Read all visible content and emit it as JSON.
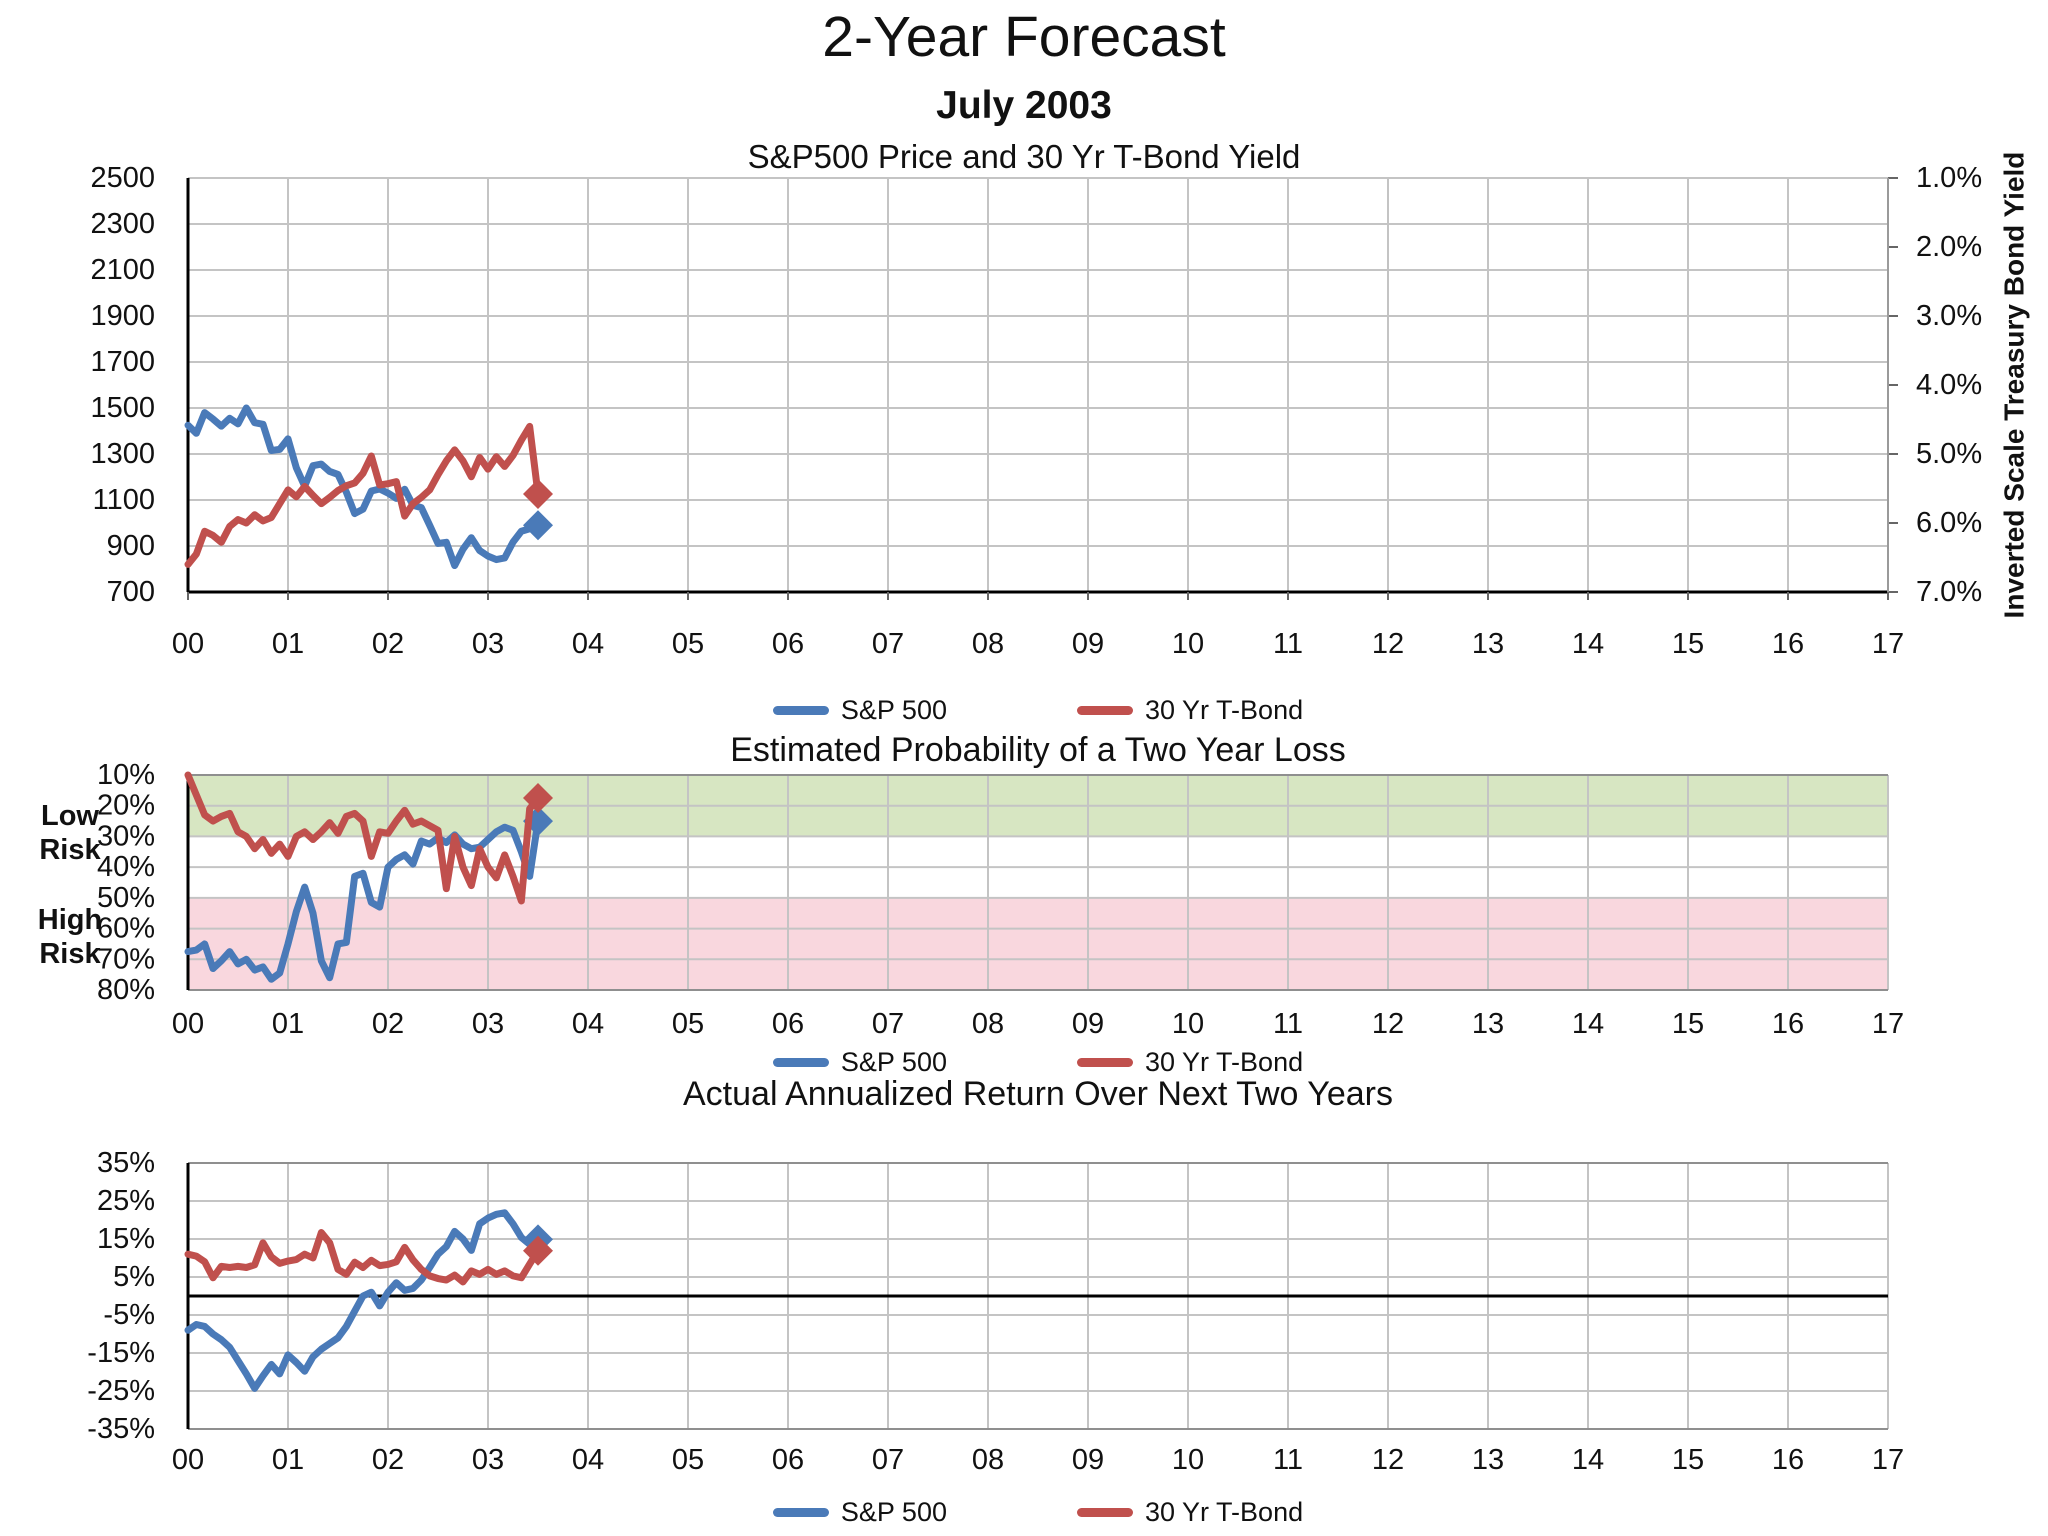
{
  "page": {
    "title": "2-Year Forecast",
    "subtitle": "July 2003"
  },
  "legend": {
    "sp500": "S&P 500",
    "tbond": "30 Yr T-Bond"
  },
  "risk_labels": {
    "low_line1": "Low",
    "low_line2": "Risk",
    "high_line1": "High",
    "high_line2": "Risk"
  },
  "right_axis_title": "Inverted Scale Treasury Bond Yield",
  "colors": {
    "sp500": "#4a7ab8",
    "tbond": "#c0504d",
    "grid": "#c4c4c4",
    "border": "#9a9a9a",
    "axis": "#000000",
    "green_band": "#d7e6c2",
    "pink_band": "#f9d7de",
    "text": "#111111"
  },
  "chart_data": [
    {
      "type": "line",
      "title": "S&P500 Price and 30 Yr T-Bond Yield",
      "x": {
        "min": 0,
        "max": 17,
        "tick_labels": [
          "00",
          "01",
          "02",
          "03",
          "04",
          "05",
          "06",
          "07",
          "08",
          "09",
          "10",
          "11",
          "12",
          "13",
          "14",
          "15",
          "16",
          "17"
        ],
        "grid": true
      },
      "y_left": {
        "min": 700,
        "max": 2500,
        "step": 200,
        "tick_labels": [
          "2500",
          "2300",
          "2100",
          "1900",
          "1700",
          "1500",
          "1300",
          "1100",
          "900",
          "700"
        ]
      },
      "y_right": {
        "min": 1.0,
        "max": 7.0,
        "step": 1.0,
        "inverted_scale": true,
        "tick_labels": [
          "1.0%",
          "2.0%",
          "3.0%",
          "4.0%",
          "5.0%",
          "6.0%",
          "7.0%"
        ]
      },
      "series": [
        {
          "name": "S&P 500",
          "axis": "left",
          "color_key": "sp500",
          "x_start_year": 0,
          "x_step_months": 1,
          "end_marker": "diamond",
          "values": [
            1425,
            1390,
            1480,
            1452,
            1421,
            1455,
            1431,
            1500,
            1436,
            1429,
            1315,
            1320,
            1366,
            1240,
            1160,
            1249,
            1256,
            1224,
            1211,
            1134,
            1041,
            1060,
            1139,
            1148,
            1130,
            1107,
            1147,
            1077,
            1067,
            990,
            911,
            916,
            815,
            886,
            936,
            880,
            856,
            841,
            848,
            917,
            964,
            975,
            990
          ]
        },
        {
          "name": "30 Yr T-Bond",
          "axis": "right",
          "color_key": "tbond",
          "x_start_year": 0,
          "x_step_months": 1,
          "end_marker": "diamond",
          "values": [
            6.6,
            6.45,
            6.12,
            6.18,
            6.28,
            6.05,
            5.95,
            6.0,
            5.88,
            5.97,
            5.92,
            5.72,
            5.52,
            5.62,
            5.47,
            5.6,
            5.72,
            5.63,
            5.53,
            5.46,
            5.42,
            5.28,
            5.03,
            5.45,
            5.43,
            5.4,
            5.9,
            5.72,
            5.63,
            5.52,
            5.3,
            5.1,
            4.94,
            5.1,
            5.33,
            5.05,
            5.22,
            5.04,
            5.18,
            5.02,
            4.8,
            4.6,
            5.58
          ]
        }
      ]
    },
    {
      "type": "line",
      "title": "Estimated Probability of a Two Year Loss",
      "x": {
        "min": 0,
        "max": 17,
        "tick_labels": [
          "00",
          "01",
          "02",
          "03",
          "04",
          "05",
          "06",
          "07",
          "08",
          "09",
          "10",
          "11",
          "12",
          "13",
          "14",
          "15",
          "16",
          "17"
        ],
        "grid": true
      },
      "y": {
        "min": 10,
        "max": 80,
        "step": 10,
        "inverted": true,
        "tick_labels": [
          "10%",
          "20%",
          "30%",
          "40%",
          "50%",
          "60%",
          "70%",
          "80%"
        ]
      },
      "bands": [
        {
          "label": "Low Risk",
          "from": 10,
          "to": 30,
          "color_key": "green_band"
        },
        {
          "label": "High Risk",
          "from": 50,
          "to": 80,
          "color_key": "pink_band"
        }
      ],
      "series": [
        {
          "name": "S&P 500",
          "color_key": "sp500",
          "x_start_year": 0,
          "x_step_months": 1,
          "end_marker": "diamond",
          "values": [
            67.5,
            67,
            65,
            73,
            70.5,
            67.5,
            71.5,
            70,
            73.5,
            72.5,
            76.5,
            74.5,
            65,
            54.5,
            46.5,
            55,
            70.5,
            76,
            65,
            64.5,
            43,
            42,
            51.5,
            53,
            40,
            37.5,
            36,
            39,
            31.5,
            32.5,
            30.5,
            32,
            29.5,
            32.5,
            34,
            33.5,
            31,
            28.5,
            27,
            28,
            35,
            43,
            25
          ]
        },
        {
          "name": "30 Yr T-Bond",
          "color_key": "tbond",
          "x_start_year": 0,
          "x_step_months": 1,
          "end_marker": "diamond",
          "values": [
            10,
            16.5,
            23,
            25,
            23.5,
            22.5,
            28.5,
            30,
            34,
            31,
            35.5,
            32.5,
            36.5,
            30,
            28.5,
            31,
            28.5,
            25.5,
            29,
            23.5,
            22.5,
            25,
            36.5,
            28.5,
            29,
            25,
            21.5,
            26,
            25,
            26.5,
            28,
            47,
            30,
            40,
            46,
            34,
            40,
            43.5,
            36,
            43,
            51,
            21,
            17.5
          ]
        }
      ]
    },
    {
      "type": "line",
      "title": "Actual Annualized Return Over Next Two Years",
      "x": {
        "min": 0,
        "max": 17,
        "tick_labels": [
          "00",
          "01",
          "02",
          "03",
          "04",
          "05",
          "06",
          "07",
          "08",
          "09",
          "10",
          "11",
          "12",
          "13",
          "14",
          "15",
          "16",
          "17"
        ],
        "grid": true
      },
      "y": {
        "min": -35,
        "max": 35,
        "step": 10,
        "tick_labels": [
          "35%",
          "25%",
          "15%",
          "5%",
          "-5%",
          "-15%",
          "-25%",
          "-35%"
        ]
      },
      "zero_line": true,
      "series": [
        {
          "name": "S&P 500",
          "color_key": "sp500",
          "x_start_year": 0,
          "x_step_months": 1,
          "end_marker": "diamond",
          "values": [
            -9,
            -7.5,
            -8,
            -10,
            -11.5,
            -13.5,
            -17,
            -20.5,
            -24.3,
            -21,
            -18,
            -20.5,
            -15.5,
            -17.5,
            -19.8,
            -16,
            -14,
            -12.5,
            -11,
            -8,
            -4,
            0,
            1,
            -2.6,
            1,
            3.5,
            1.5,
            2,
            4.2,
            7.5,
            11,
            13,
            17,
            15,
            12,
            19,
            20.5,
            21.5,
            21.9,
            19,
            15.4,
            13.6,
            14.9
          ]
        },
        {
          "name": "30 Yr T-Bond",
          "color_key": "tbond",
          "x_start_year": 0,
          "x_step_months": 1,
          "end_marker": "diamond",
          "values": [
            11,
            10.5,
            9,
            4.8,
            7.8,
            7.5,
            7.8,
            7.5,
            8.2,
            14,
            10.3,
            8.6,
            9.2,
            9.6,
            11,
            10,
            16.7,
            14,
            7,
            5.7,
            8.9,
            7.5,
            9.4,
            8,
            8.3,
            9,
            12.8,
            9.5,
            7,
            5.3,
            4.6,
            4.2,
            5.5,
            3.7,
            6.6,
            5.7,
            7.0,
            5.7,
            6.6,
            5.3,
            4.8,
            8.4,
            11.9
          ]
        }
      ]
    }
  ]
}
